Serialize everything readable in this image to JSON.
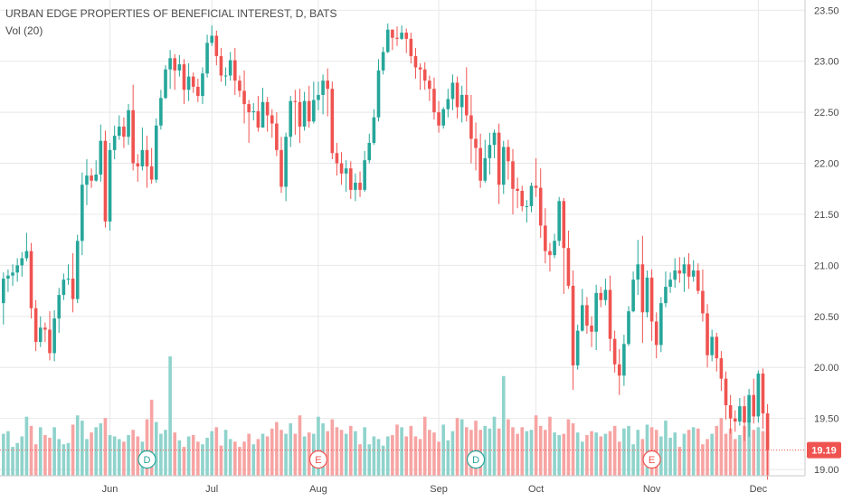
{
  "legend": {
    "title": "URBAN EDGE PROPERTIES OF BENEFICIAL INTEREST, D, BATS",
    "volume": "Vol (20)"
  },
  "colors": {
    "up": "#26a69a",
    "down": "#ef5350",
    "up_volume": "#8fd3cc",
    "down_volume": "#f6a4a3",
    "grid": "#e8e8e8",
    "axis_text": "#4a4a4a",
    "price_line": "#ef5350"
  },
  "chart_data": {
    "type": "candlestick",
    "title": "URBAN EDGE PROPERTIES OF BENEFICIAL INTEREST, D, BATS",
    "y_ticks": [
      "19.00",
      "19.50",
      "20.00",
      "20.50",
      "21.00",
      "21.50",
      "22.00",
      "22.50",
      "23.00",
      "23.50"
    ],
    "ylim": [
      18.85,
      23.6
    ],
    "x_ticks": [
      {
        "label": "Jun",
        "index": 23
      },
      {
        "label": "Jul",
        "index": 45
      },
      {
        "label": "Aug",
        "index": 68
      },
      {
        "label": "Sep",
        "index": 94
      },
      {
        "label": "Oct",
        "index": 115
      },
      {
        "label": "Nov",
        "index": 140
      },
      {
        "label": "Dec",
        "index": 163
      }
    ],
    "last_price": "19.19",
    "last_price_value": 19.19,
    "event_markers": [
      {
        "label": "D",
        "index": 31
      },
      {
        "label": "E",
        "index": 68
      },
      {
        "label": "D",
        "index": 102
      },
      {
        "label": "E",
        "index": 140
      }
    ],
    "candles": [
      [
        20.63,
        20.87,
        20.93,
        20.42,
        160
      ],
      [
        20.87,
        20.9,
        20.96,
        20.74,
        170
      ],
      [
        20.9,
        20.93,
        21.01,
        20.8,
        110
      ],
      [
        20.93,
        21.0,
        21.07,
        20.84,
        125
      ],
      [
        21.0,
        21.07,
        21.13,
        20.89,
        150
      ],
      [
        21.07,
        21.14,
        21.32,
        21.04,
        225
      ],
      [
        21.14,
        20.58,
        21.22,
        20.48,
        190
      ],
      [
        20.58,
        20.25,
        20.66,
        20.16,
        120
      ],
      [
        20.25,
        20.39,
        20.5,
        20.2,
        185
      ],
      [
        20.39,
        20.37,
        20.44,
        20.25,
        155
      ],
      [
        20.37,
        20.14,
        20.55,
        20.07,
        145
      ],
      [
        20.14,
        20.48,
        20.56,
        20.06,
        185
      ],
      [
        20.48,
        20.71,
        20.78,
        20.34,
        140
      ],
      [
        20.71,
        20.86,
        20.92,
        20.66,
        120
      ],
      [
        20.86,
        20.87,
        21.01,
        20.81,
        125
      ],
      [
        20.87,
        20.67,
        21.12,
        20.54,
        195
      ],
      [
        20.67,
        21.24,
        21.3,
        20.63,
        230
      ],
      [
        21.24,
        21.79,
        21.91,
        21.1,
        210
      ],
      [
        21.79,
        21.88,
        22.04,
        21.59,
        140
      ],
      [
        21.88,
        21.83,
        21.95,
        21.76,
        165
      ],
      [
        21.83,
        21.89,
        22.03,
        21.82,
        185
      ],
      [
        21.89,
        22.22,
        22.38,
        21.82,
        200
      ],
      [
        22.22,
        21.43,
        22.32,
        21.37,
        220
      ],
      [
        21.43,
        22.13,
        22.2,
        21.34,
        155
      ],
      [
        22.13,
        22.27,
        22.37,
        22.04,
        150
      ],
      [
        22.27,
        22.36,
        22.47,
        22.23,
        140
      ],
      [
        22.36,
        22.26,
        22.45,
        22.15,
        130
      ],
      [
        22.26,
        22.52,
        22.58,
        22.18,
        155
      ],
      [
        22.52,
        22.0,
        22.77,
        21.93,
        175
      ],
      [
        22.0,
        21.97,
        22.09,
        21.82,
        150
      ],
      [
        21.97,
        22.13,
        22.35,
        21.93,
        130
      ],
      [
        22.13,
        21.97,
        22.27,
        21.76,
        215
      ],
      [
        21.97,
        21.84,
        22.15,
        21.8,
        290
      ],
      [
        21.84,
        22.37,
        22.44,
        21.81,
        205
      ],
      [
        22.37,
        22.64,
        22.72,
        22.33,
        160
      ],
      [
        22.64,
        22.92,
        22.96,
        22.63,
        175
      ],
      [
        22.92,
        23.03,
        23.11,
        22.73,
        455
      ],
      [
        23.03,
        22.91,
        23.07,
        22.72,
        165
      ],
      [
        22.91,
        22.97,
        23.06,
        22.85,
        135
      ],
      [
        22.97,
        22.72,
        23.02,
        22.58,
        110
      ],
      [
        22.72,
        22.85,
        22.98,
        22.61,
        150
      ],
      [
        22.85,
        22.75,
        22.89,
        22.69,
        155
      ],
      [
        22.75,
        22.66,
        22.83,
        22.6,
        130
      ],
      [
        22.66,
        22.88,
        22.94,
        22.58,
        120
      ],
      [
        22.88,
        23.18,
        23.26,
        22.84,
        145
      ],
      [
        23.18,
        23.25,
        23.35,
        23.15,
        170
      ],
      [
        23.25,
        23.05,
        23.3,
        22.96,
        185
      ],
      [
        23.05,
        22.86,
        23.13,
        22.8,
        115
      ],
      [
        22.86,
        22.86,
        22.94,
        22.76,
        175
      ],
      [
        22.86,
        23.01,
        23.09,
        22.81,
        140
      ],
      [
        23.01,
        22.81,
        23.13,
        22.67,
        130
      ],
      [
        22.81,
        22.71,
        22.86,
        22.65,
        110
      ],
      [
        22.71,
        22.58,
        22.91,
        22.39,
        130
      ],
      [
        22.58,
        22.5,
        22.62,
        22.2,
        160
      ],
      [
        22.5,
        22.51,
        22.59,
        22.42,
        120
      ],
      [
        22.51,
        22.35,
        22.66,
        22.31,
        140
      ],
      [
        22.35,
        22.6,
        22.74,
        22.36,
        160
      ],
      [
        22.6,
        22.47,
        22.65,
        22.31,
        150
      ],
      [
        22.47,
        22.39,
        22.53,
        22.25,
        180
      ],
      [
        22.39,
        22.13,
        22.5,
        22.07,
        205
      ],
      [
        22.13,
        21.77,
        22.26,
        21.71,
        175
      ],
      [
        21.77,
        22.26,
        22.3,
        21.63,
        160
      ],
      [
        22.26,
        22.61,
        22.66,
        22.16,
        200
      ],
      [
        22.61,
        22.6,
        22.72,
        22.28,
        160
      ],
      [
        22.6,
        22.36,
        22.73,
        22.2,
        230
      ],
      [
        22.36,
        22.61,
        22.7,
        22.32,
        150
      ],
      [
        22.61,
        22.41,
        22.76,
        22.35,
        165
      ],
      [
        22.41,
        22.62,
        22.8,
        22.39,
        160
      ],
      [
        22.62,
        22.67,
        22.8,
        22.52,
        225
      ],
      [
        22.67,
        22.81,
        22.87,
        22.48,
        200
      ],
      [
        22.81,
        22.73,
        22.93,
        22.46,
        170
      ],
      [
        22.73,
        22.1,
        22.8,
        22.04,
        215
      ],
      [
        22.1,
        22.0,
        22.2,
        21.88,
        185
      ],
      [
        22.0,
        21.9,
        22.11,
        21.79,
        175
      ],
      [
        21.9,
        21.95,
        22.03,
        21.72,
        160
      ],
      [
        21.95,
        21.74,
        22.02,
        21.65,
        190
      ],
      [
        21.74,
        21.81,
        21.9,
        21.63,
        170
      ],
      [
        21.81,
        21.74,
        21.92,
        21.67,
        120
      ],
      [
        21.74,
        22.03,
        22.12,
        21.72,
        185
      ],
      [
        22.03,
        22.2,
        22.29,
        22.0,
        120
      ],
      [
        22.2,
        22.45,
        22.53,
        22.18,
        150
      ],
      [
        22.45,
        22.91,
        23.02,
        22.41,
        140
      ],
      [
        22.91,
        23.09,
        23.14,
        22.87,
        115
      ],
      [
        23.09,
        23.31,
        23.37,
        23.08,
        150
      ],
      [
        23.31,
        23.23,
        23.31,
        23.11,
        155
      ],
      [
        23.23,
        23.22,
        23.34,
        23.15,
        195
      ],
      [
        23.22,
        23.28,
        23.35,
        23.21,
        185
      ],
      [
        23.28,
        23.22,
        23.32,
        23.08,
        150
      ],
      [
        23.22,
        23.05,
        23.28,
        22.98,
        190
      ],
      [
        23.05,
        22.94,
        23.13,
        22.83,
        150
      ],
      [
        22.94,
        22.92,
        22.98,
        22.72,
        140
      ],
      [
        22.92,
        22.81,
        22.99,
        22.72,
        225
      ],
      [
        22.81,
        22.73,
        22.86,
        22.61,
        175
      ],
      [
        22.73,
        22.5,
        22.84,
        22.43,
        165
      ],
      [
        22.5,
        22.37,
        22.61,
        22.3,
        130
      ],
      [
        22.37,
        22.53,
        22.55,
        22.34,
        195
      ],
      [
        22.53,
        22.63,
        22.73,
        22.45,
        135
      ],
      [
        22.63,
        22.79,
        22.87,
        22.52,
        170
      ],
      [
        22.79,
        22.55,
        22.85,
        22.44,
        220
      ],
      [
        22.55,
        22.67,
        22.76,
        22.4,
        215
      ],
      [
        22.67,
        22.47,
        22.94,
        22.41,
        185
      ],
      [
        22.47,
        22.24,
        22.67,
        22.0,
        175
      ],
      [
        22.24,
        22.15,
        22.4,
        21.93,
        210
      ],
      [
        22.15,
        21.83,
        22.29,
        21.76,
        175
      ],
      [
        21.83,
        22.05,
        22.23,
        21.81,
        190
      ],
      [
        22.05,
        22.18,
        22.3,
        21.89,
        180
      ],
      [
        22.18,
        22.3,
        22.33,
        22.05,
        225
      ],
      [
        22.3,
        21.79,
        22.39,
        21.6,
        180
      ],
      [
        21.79,
        22.16,
        22.22,
        21.7,
        380
      ],
      [
        22.16,
        22.02,
        22.23,
        21.84,
        215
      ],
      [
        22.02,
        21.75,
        22.14,
        21.5,
        185
      ],
      [
        21.75,
        21.73,
        21.86,
        21.56,
        160
      ],
      [
        21.73,
        21.58,
        21.78,
        21.53,
        185
      ],
      [
        21.58,
        21.58,
        21.64,
        21.42,
        170
      ],
      [
        21.58,
        21.78,
        21.81,
        21.52,
        175
      ],
      [
        21.78,
        21.76,
        22.05,
        21.67,
        230
      ],
      [
        21.76,
        21.39,
        21.95,
        21.27,
        190
      ],
      [
        21.39,
        21.14,
        21.56,
        21.02,
        175
      ],
      [
        21.14,
        21.1,
        21.22,
        20.94,
        225
      ],
      [
        21.1,
        21.24,
        21.31,
        21.07,
        165
      ],
      [
        21.24,
        21.63,
        21.67,
        21.19,
        155
      ],
      [
        21.63,
        21.17,
        21.66,
        20.72,
        160
      ],
      [
        21.17,
        20.8,
        21.34,
        20.77,
        215
      ],
      [
        20.8,
        20.02,
        20.95,
        19.78,
        200
      ],
      [
        20.02,
        20.36,
        20.42,
        19.98,
        165
      ],
      [
        20.36,
        20.61,
        20.77,
        20.35,
        130
      ],
      [
        20.61,
        20.41,
        20.69,
        20.33,
        155
      ],
      [
        20.41,
        20.35,
        20.5,
        20.2,
        170
      ],
      [
        20.35,
        20.73,
        20.81,
        20.17,
        165
      ],
      [
        20.73,
        20.66,
        20.79,
        20.59,
        150
      ],
      [
        20.66,
        20.76,
        20.87,
        20.61,
        160
      ],
      [
        20.76,
        20.28,
        20.9,
        20.16,
        170
      ],
      [
        20.28,
        20.03,
        20.36,
        19.95,
        190
      ],
      [
        20.03,
        19.92,
        20.18,
        19.73,
        130
      ],
      [
        19.92,
        20.23,
        20.32,
        19.82,
        180
      ],
      [
        20.23,
        20.55,
        20.6,
        20.21,
        190
      ],
      [
        20.55,
        20.86,
        20.94,
        20.54,
        120
      ],
      [
        20.86,
        21.01,
        21.25,
        20.71,
        175
      ],
      [
        21.01,
        20.54,
        21.29,
        20.24,
        140
      ],
      [
        20.54,
        20.88,
        20.95,
        20.49,
        195
      ],
      [
        20.88,
        20.45,
        20.96,
        20.26,
        185
      ],
      [
        20.45,
        20.22,
        20.54,
        20.09,
        175
      ],
      [
        20.22,
        20.63,
        20.69,
        20.15,
        150
      ],
      [
        20.63,
        20.79,
        20.94,
        20.59,
        210
      ],
      [
        20.79,
        20.86,
        20.93,
        20.73,
        145
      ],
      [
        20.86,
        20.95,
        21.07,
        20.78,
        165
      ],
      [
        20.95,
        20.92,
        21.08,
        20.83,
        110
      ],
      [
        20.92,
        21.01,
        21.08,
        20.74,
        160
      ],
      [
        21.01,
        20.89,
        21.12,
        20.77,
        175
      ],
      [
        20.89,
        20.95,
        21.05,
        20.84,
        185
      ],
      [
        20.95,
        20.75,
        21.02,
        20.72,
        180
      ],
      [
        20.75,
        20.53,
        20.96,
        20.45,
        120
      ],
      [
        20.53,
        20.12,
        20.62,
        20.0,
        140
      ],
      [
        20.12,
        20.3,
        20.37,
        20.06,
        160
      ],
      [
        20.3,
        20.09,
        20.34,
        19.96,
        190
      ],
      [
        20.09,
        19.89,
        20.16,
        19.77,
        220
      ],
      [
        19.89,
        19.63,
        19.96,
        19.49,
        160
      ],
      [
        19.63,
        19.5,
        19.73,
        19.35,
        180
      ],
      [
        19.5,
        19.47,
        19.58,
        19.37,
        140
      ],
      [
        19.47,
        19.62,
        19.7,
        19.43,
        155
      ],
      [
        19.62,
        19.46,
        19.72,
        19.28,
        190
      ],
      [
        19.46,
        19.73,
        19.79,
        19.32,
        215
      ],
      [
        19.73,
        19.52,
        19.89,
        19.45,
        175
      ],
      [
        19.52,
        19.94,
        19.97,
        19.46,
        185
      ],
      [
        19.94,
        19.55,
        19.99,
        19.4,
        170
      ],
      [
        19.55,
        19.19,
        19.64,
        18.9,
        170
      ]
    ]
  }
}
